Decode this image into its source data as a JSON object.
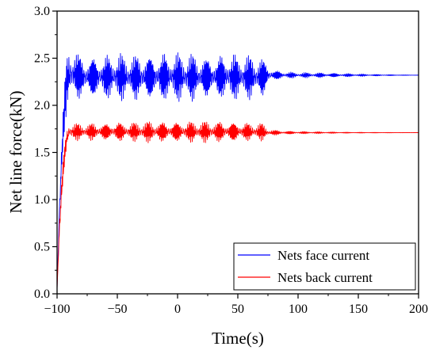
{
  "chart_data": {
    "type": "line",
    "xlabel": "Time(s)",
    "ylabel": "Net line force(kN)",
    "xlim": [
      -100,
      200
    ],
    "ylim": [
      0.0,
      3.0
    ],
    "xticks": [
      -100,
      -50,
      0,
      50,
      100,
      150,
      200
    ],
    "xtick_labels": [
      "−100",
      "−50",
      "0",
      "50",
      "100",
      "150",
      "200"
    ],
    "yticks": [
      0.0,
      0.5,
      1.0,
      1.5,
      2.0,
      2.5,
      3.0
    ],
    "ytick_labels": [
      "0.0",
      "0.5",
      "1.0",
      "1.5",
      "2.0",
      "2.5",
      "3.0"
    ],
    "grid": false,
    "legend_position": "bottom-right",
    "series": [
      {
        "name": "Nets face current",
        "color": "#0000ff",
        "x": [
          -100,
          -98,
          -96,
          -94,
          -92,
          -90,
          -85,
          -80,
          -70,
          -60,
          -50,
          -40,
          -30,
          -20,
          -10,
          0,
          10,
          20,
          30,
          40,
          50,
          60,
          70,
          75,
          80,
          90,
          100,
          110,
          120,
          130,
          140,
          150,
          160,
          170,
          180,
          190,
          200
        ],
        "mean": [
          0.05,
          0.9,
          1.5,
          1.95,
          2.25,
          2.33,
          2.33,
          2.3,
          2.3,
          2.3,
          2.3,
          2.3,
          2.3,
          2.3,
          2.3,
          2.3,
          2.3,
          2.3,
          2.3,
          2.3,
          2.3,
          2.3,
          2.3,
          2.32,
          2.32,
          2.32,
          2.32,
          2.32,
          2.32,
          2.32,
          2.32,
          2.32,
          2.32,
          2.32,
          2.32,
          2.32,
          2.32
        ],
        "amplitude": [
          0.0,
          0.15,
          0.2,
          0.25,
          0.32,
          0.35,
          0.3,
          0.25,
          0.25,
          0.25,
          0.27,
          0.25,
          0.28,
          0.27,
          0.28,
          0.27,
          0.28,
          0.25,
          0.25,
          0.27,
          0.25,
          0.25,
          0.25,
          0.12,
          0.06,
          0.04,
          0.03,
          0.03,
          0.03,
          0.025,
          0.02,
          0.015,
          0.01,
          0.008,
          0.005,
          0.003,
          0.002
        ]
      },
      {
        "name": "Nets back current",
        "color": "#ff0000",
        "x": [
          -100,
          -98,
          -96,
          -94,
          -92,
          -90,
          -85,
          -80,
          -70,
          -60,
          -50,
          -40,
          -30,
          -20,
          -10,
          0,
          10,
          20,
          30,
          40,
          50,
          60,
          70,
          75,
          80,
          90,
          100,
          110,
          120,
          130,
          140,
          150,
          160,
          170,
          180,
          190,
          200
        ],
        "mean": [
          0.05,
          0.7,
          1.15,
          1.45,
          1.65,
          1.72,
          1.72,
          1.72,
          1.72,
          1.72,
          1.72,
          1.72,
          1.72,
          1.72,
          1.72,
          1.72,
          1.72,
          1.72,
          1.72,
          1.72,
          1.72,
          1.72,
          1.72,
          1.71,
          1.71,
          1.71,
          1.71,
          1.71,
          1.71,
          1.71,
          1.71,
          1.71,
          1.71,
          1.71,
          1.71,
          1.71,
          1.71
        ],
        "amplitude": [
          0.0,
          0.1,
          0.12,
          0.12,
          0.12,
          0.12,
          0.1,
          0.09,
          0.1,
          0.1,
          0.12,
          0.1,
          0.12,
          0.12,
          0.12,
          0.12,
          0.12,
          0.12,
          0.12,
          0.12,
          0.12,
          0.1,
          0.1,
          0.05,
          0.03,
          0.02,
          0.015,
          0.012,
          0.01,
          0.008,
          0.006,
          0.005,
          0.004,
          0.003,
          0.002,
          0.001,
          0.001
        ]
      }
    ]
  }
}
